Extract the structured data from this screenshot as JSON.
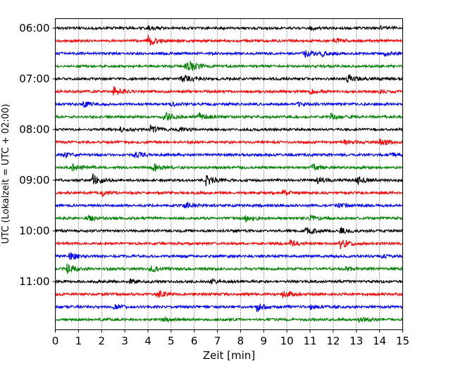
{
  "chart_data": {
    "type": "line",
    "title": "",
    "xlabel": "Zeit  [min]",
    "ylabel": "UTC (Lokalzeit = UTC + 02:00)",
    "xlim": [
      0,
      15
    ],
    "xticks": [
      "0",
      "1",
      "2",
      "3",
      "4",
      "5",
      "6",
      "7",
      "8",
      "9",
      "10",
      "11",
      "12",
      "13",
      "14",
      "15"
    ],
    "ytick_labels": [
      "06:00",
      "07:00",
      "08:00",
      "09:00",
      "10:00",
      "11:00"
    ],
    "ytick_trace_index": [
      0,
      4,
      8,
      12,
      16,
      20
    ],
    "grid": "vertical dotted",
    "color_cycle": [
      "#000000",
      "#ff0000",
      "#0000ff",
      "#008000"
    ],
    "traces": [
      {
        "label": "06:00",
        "bursts": [
          [
            14.0,
            0.3
          ],
          [
            11.0,
            0.2
          ],
          [
            4.0,
            0.2
          ]
        ]
      },
      {
        "label": "06:15",
        "bursts": [
          [
            4.0,
            0.8
          ],
          [
            12.0,
            0.4
          ]
        ]
      },
      {
        "label": "06:30",
        "bursts": [
          [
            10.7,
            0.7
          ],
          [
            14.2,
            0.4
          ],
          [
            11.5,
            0.4
          ]
        ]
      },
      {
        "label": "06:45",
        "bursts": [
          [
            5.6,
            0.8
          ],
          [
            5.8,
            0.5
          ]
        ]
      },
      {
        "label": "07:00",
        "bursts": [
          [
            5.4,
            0.5
          ],
          [
            12.6,
            0.7
          ],
          [
            5.6,
            0.3
          ]
        ]
      },
      {
        "label": "07:15",
        "bursts": [
          [
            2.5,
            0.7
          ],
          [
            11.0,
            0.3
          ],
          [
            14.0,
            0.2
          ]
        ]
      },
      {
        "label": "07:30",
        "bursts": [
          [
            1.2,
            0.4
          ],
          [
            5.0,
            0.3
          ],
          [
            10.4,
            0.3
          ]
        ]
      },
      {
        "label": "07:45",
        "bursts": [
          [
            4.7,
            0.8
          ],
          [
            6.2,
            0.6
          ],
          [
            11.9,
            0.5
          ]
        ]
      },
      {
        "label": "08:00",
        "bursts": [
          [
            4.1,
            0.5
          ],
          [
            2.8,
            0.3
          ],
          [
            5.3,
            0.3
          ]
        ]
      },
      {
        "label": "08:15",
        "bursts": [
          [
            14.0,
            0.7
          ],
          [
            12.4,
            0.4
          ]
        ]
      },
      {
        "label": "08:30",
        "bursts": [
          [
            3.4,
            0.5
          ],
          [
            0.4,
            0.3
          ],
          [
            14.5,
            0.3
          ]
        ]
      },
      {
        "label": "08:45",
        "bursts": [
          [
            0.7,
            0.5
          ],
          [
            4.2,
            0.7
          ],
          [
            11.1,
            0.5
          ]
        ]
      },
      {
        "label": "09:00",
        "bursts": [
          [
            1.6,
            0.9
          ],
          [
            6.5,
            0.8
          ],
          [
            13.0,
            0.6
          ],
          [
            11.3,
            0.5
          ]
        ]
      },
      {
        "label": "09:15",
        "bursts": [
          [
            2.0,
            0.4
          ],
          [
            9.8,
            0.4
          ]
        ]
      },
      {
        "label": "09:30",
        "bursts": [
          [
            5.6,
            0.6
          ],
          [
            12.2,
            0.3
          ]
        ]
      },
      {
        "label": "09:45",
        "bursts": [
          [
            1.4,
            0.5
          ],
          [
            8.2,
            0.5
          ],
          [
            11.0,
            0.3
          ]
        ]
      },
      {
        "label": "10:00",
        "bursts": [
          [
            10.8,
            0.6
          ],
          [
            12.3,
            0.5
          ]
        ]
      },
      {
        "label": "10:15",
        "bursts": [
          [
            10.1,
            0.6
          ],
          [
            12.3,
            0.9
          ]
        ]
      },
      {
        "label": "10:30",
        "bursts": [
          [
            0.6,
            0.6
          ],
          [
            14.1,
            0.3
          ]
        ]
      },
      {
        "label": "10:45",
        "bursts": [
          [
            0.5,
            0.7
          ],
          [
            4.1,
            0.4
          ],
          [
            12.5,
            0.3
          ]
        ]
      },
      {
        "label": "11:00",
        "bursts": [
          [
            3.2,
            0.3
          ],
          [
            6.7,
            0.3
          ]
        ]
      },
      {
        "label": "11:15",
        "bursts": [
          [
            4.4,
            0.6
          ],
          [
            9.8,
            0.6
          ]
        ]
      },
      {
        "label": "11:30",
        "bursts": [
          [
            8.7,
            0.6
          ],
          [
            11.0,
            0.4
          ],
          [
            2.5,
            0.3
          ]
        ]
      },
      {
        "label": "11:45",
        "bursts": [
          [
            13.1,
            0.5
          ],
          [
            4.6,
            0.3
          ]
        ]
      }
    ]
  }
}
